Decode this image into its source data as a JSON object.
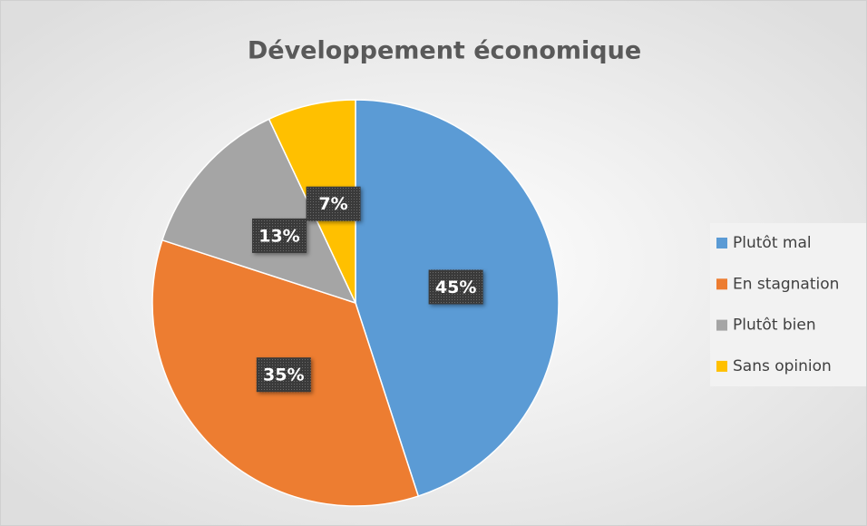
{
  "chart_data": {
    "type": "pie",
    "title": "Développement économique",
    "categories": [
      "Plutôt mal",
      "En stagnation",
      "Plutôt bien",
      "Sans opinion"
    ],
    "values": [
      45,
      35,
      13,
      7
    ],
    "value_labels": [
      "45%",
      "35%",
      "13%",
      "7%"
    ],
    "colors": [
      "#5b9bd5",
      "#ed7d31",
      "#a5a5a5",
      "#ffc000"
    ],
    "legend": "right"
  }
}
